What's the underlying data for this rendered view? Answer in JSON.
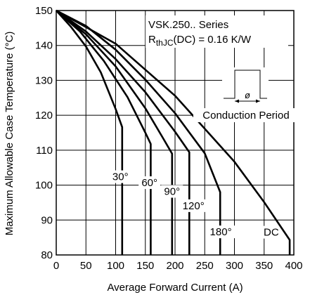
{
  "chart_data": {
    "type": "line",
    "series_title": "VSK.250.. Series",
    "rth_prefix": "R",
    "rth_subscript": "thJC",
    "rth_suffix": "(DC) = 0.16 K/W",
    "inset_symbol": "ø",
    "inset_label": "Conduction Period",
    "xlabel": "Average Forward Current (A)",
    "ylabel": "Maximum Allowable Case Temperature (°C)",
    "xlim": [
      0,
      400
    ],
    "ylim": [
      80,
      150
    ],
    "x_ticks": [
      "0",
      "50",
      "100",
      "150",
      "200",
      "250",
      "300",
      "350",
      "400"
    ],
    "y_ticks": [
      "80",
      "90",
      "100",
      "110",
      "120",
      "130",
      "140",
      "150"
    ],
    "grid": true,
    "series": [
      {
        "name": "30°",
        "points": [
          [
            0,
            150
          ],
          [
            25,
            145.3
          ],
          [
            50,
            139.7
          ],
          [
            75,
            132.3
          ],
          [
            100,
            121.8
          ],
          [
            111,
            116.6
          ],
          [
            111,
            80
          ]
        ]
      },
      {
        "name": "60°",
        "points": [
          [
            0,
            150
          ],
          [
            40,
            144
          ],
          [
            80,
            135.6
          ],
          [
            120,
            125.2
          ],
          [
            150,
            115
          ],
          [
            159,
            111.8
          ],
          [
            159,
            80
          ]
        ]
      },
      {
        "name": "90°",
        "points": [
          [
            0,
            150
          ],
          [
            50,
            143.2
          ],
          [
            100,
            134
          ],
          [
            150,
            122
          ],
          [
            180,
            113.4
          ],
          [
            195,
            109
          ],
          [
            195,
            80
          ]
        ]
      },
      {
        "name": "120°",
        "points": [
          [
            0,
            150
          ],
          [
            50,
            144
          ],
          [
            100,
            136.1
          ],
          [
            150,
            126.6
          ],
          [
            200,
            115.3
          ],
          [
            224,
            109.4
          ],
          [
            224,
            80
          ]
        ]
      },
      {
        "name": "180°",
        "points": [
          [
            0,
            150
          ],
          [
            50,
            145.6
          ],
          [
            100,
            138.8
          ],
          [
            150,
            130.2
          ],
          [
            200,
            120.6
          ],
          [
            250,
            109.1
          ],
          [
            276,
            98
          ],
          [
            276,
            80
          ]
        ]
      },
      {
        "name": "DC",
        "points": [
          [
            0,
            150
          ],
          [
            100,
            140.5
          ],
          [
            200,
            125.6
          ],
          [
            300,
            106.7
          ],
          [
            350,
            95.1
          ],
          [
            393,
            84.3
          ],
          [
            393,
            80
          ]
        ]
      }
    ],
    "curve_labels": [
      {
        "text": "30°",
        "x": 108,
        "y": 101.4
      },
      {
        "text": "60°",
        "x": 157,
        "y": 99.7
      },
      {
        "text": "90°",
        "x": 195,
        "y": 97.2
      },
      {
        "text": "120°",
        "x": 231,
        "y": 93.1
      },
      {
        "text": "180°",
        "x": 277,
        "y": 85.6
      },
      {
        "text": "DC",
        "x": 362,
        "y": 85.5
      }
    ]
  }
}
